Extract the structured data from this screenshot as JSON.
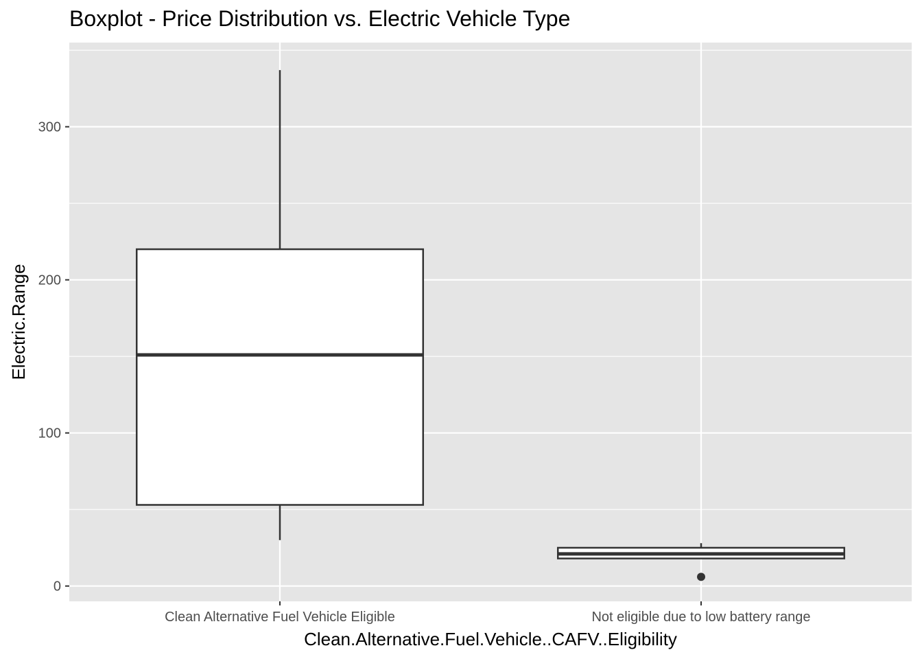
{
  "chart_data": {
    "type": "boxplot",
    "title": "Boxplot - Price Distribution vs. Electric Vehicle Type",
    "xlabel": "Clean.Alternative.Fuel.Vehicle..CAFV..Eligibility",
    "ylabel": "Electric.Range",
    "categories": [
      "Clean Alternative Fuel Vehicle Eligible",
      "Not eligible due to low battery range"
    ],
    "boxes": [
      {
        "category": "Clean Alternative Fuel Vehicle Eligible",
        "whisker_low": 30,
        "q1": 53,
        "median": 151,
        "q3": 220,
        "whisker_high": 337,
        "outliers": []
      },
      {
        "category": "Not eligible due to low battery range",
        "whisker_low": 18,
        "q1": 18,
        "median": 21,
        "q3": 25,
        "whisker_high": 28,
        "outliers": [
          6
        ]
      }
    ],
    "ylim": [
      -10,
      355
    ],
    "yticks": [
      0,
      100,
      200,
      300
    ],
    "grid": true,
    "colors": {
      "panel": "#e5e5e5",
      "grid": "#ffffff",
      "box_fill": "#ffffff",
      "box_stroke": "#333333"
    }
  }
}
